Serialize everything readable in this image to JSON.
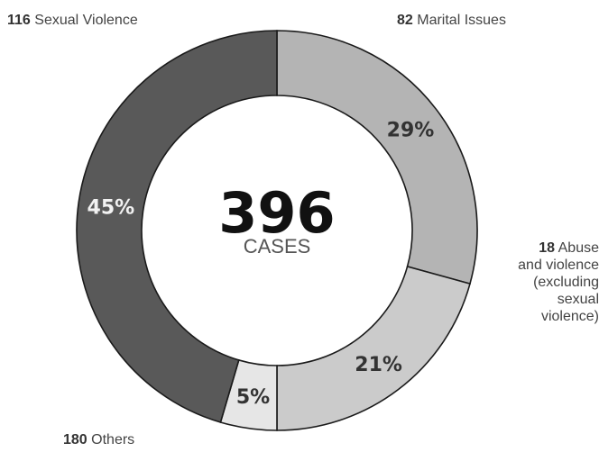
{
  "chart_data": {
    "type": "pie",
    "donut": true,
    "total": "396",
    "total_unit": "CASES",
    "slices": [
      {
        "count": "116",
        "label": "Sexual Violence",
        "value": 116,
        "percent_label": "29%",
        "color": "#b4b4b4",
        "text_color": "#333333"
      },
      {
        "count": "82",
        "label": "Marital Issues",
        "value": 82,
        "percent_label": "21%",
        "color": "#cbcbcb",
        "text_color": "#333333"
      },
      {
        "count": "18",
        "label": "Abuse and violence (excluding sexual violence)",
        "label_lines": [
          "Abuse",
          "and violence",
          "(excluding",
          "sexual",
          "violence)"
        ],
        "value": 18,
        "percent_label": "5%",
        "color": "#e6e6e6",
        "text_color": "#333333"
      },
      {
        "count": "180",
        "label": "Others",
        "value": 180,
        "percent_label": "45%",
        "color": "#595959",
        "text_color": "#f2f2f2"
      }
    ],
    "start_angle_deg": 270,
    "direction": "clockwise"
  }
}
